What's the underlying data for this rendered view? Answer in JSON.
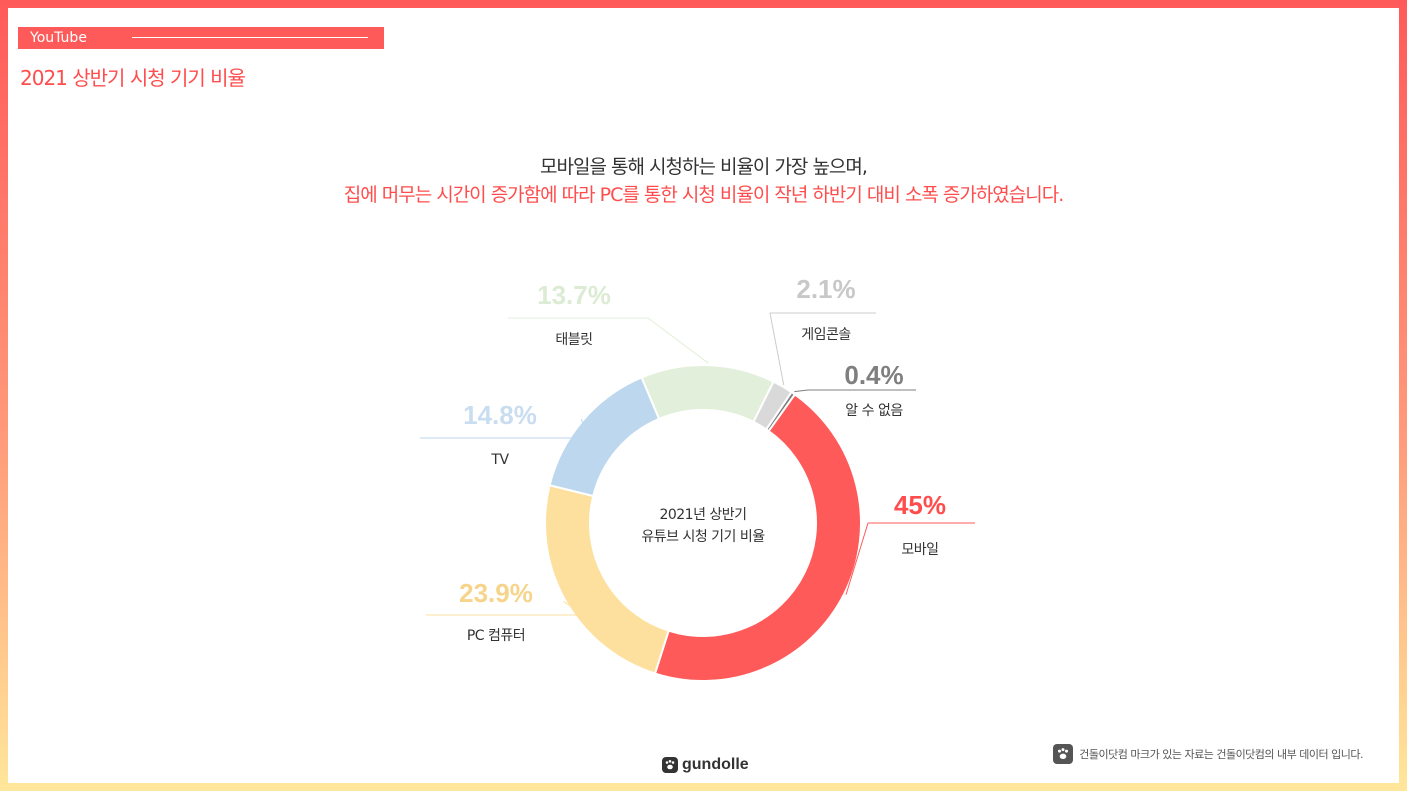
{
  "header": {
    "tag": "YouTube",
    "title": "2021 상반기 시청 기기 비율"
  },
  "headline": {
    "line1": "모바일을 통해 시청하는 비율이 가장 높으며,",
    "line2": "집에 머무는 시간이 증가함에 따라 PC를 통한 시청 비율이 작년 하반기 대비 소폭 증가하였습니다."
  },
  "chart_data": {
    "type": "pie",
    "donut": true,
    "center_text": [
      "2021년 상반기",
      "유튜브 시청 기기 비율"
    ],
    "slices": [
      {
        "label": "모바일",
        "value": 45,
        "display": "45%",
        "color": "#ff5a5a",
        "pct_color": "#ff4d4d"
      },
      {
        "label": "PC 컴퓨터",
        "value": 23.9,
        "display": "23.9%",
        "color": "#fde09e",
        "pct_color": "#f6d48b"
      },
      {
        "label": "TV",
        "value": 14.8,
        "display": "14.8%",
        "color": "#bdd7ee",
        "pct_color": "#c9ddf0"
      },
      {
        "label": "태블릿",
        "value": 13.7,
        "display": "13.7%",
        "color": "#e2efda",
        "pct_color": "#dcebd3"
      },
      {
        "label": "게임콘솔",
        "value": 2.1,
        "display": "2.1%",
        "color": "#d9d9d9",
        "pct_color": "#c8c8c8"
      },
      {
        "label": "알 수 없음",
        "value": 0.4,
        "display": "0.4%",
        "color": "#7f7f7f",
        "pct_color": "#7f7f7f"
      }
    ]
  },
  "footer": {
    "logo_text": "gundolle",
    "footnote": "건돌이닷컴 마크가 있는 자료는 건돌이닷컴의 내부 데이터 입니다."
  }
}
